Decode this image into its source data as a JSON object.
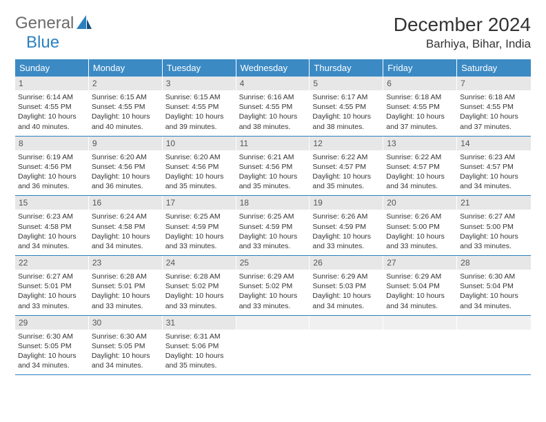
{
  "brand": {
    "text1": "General",
    "text2": "Blue"
  },
  "title": "December 2024",
  "location": "Barhiya, Bihar, India",
  "colors": {
    "header_bg": "#3b8ac4",
    "header_text": "#ffffff",
    "daynum_bg": "#e7e7e7",
    "border": "#2a7fbf",
    "body_text": "#333333",
    "logo_gray": "#6a6a6a",
    "logo_blue": "#2a7fbf"
  },
  "day_names": [
    "Sunday",
    "Monday",
    "Tuesday",
    "Wednesday",
    "Thursday",
    "Friday",
    "Saturday"
  ],
  "days": [
    {
      "n": 1,
      "sunrise": "6:14 AM",
      "sunset": "4:55 PM",
      "daylight": "10 hours and 40 minutes."
    },
    {
      "n": 2,
      "sunrise": "6:15 AM",
      "sunset": "4:55 PM",
      "daylight": "10 hours and 40 minutes."
    },
    {
      "n": 3,
      "sunrise": "6:15 AM",
      "sunset": "4:55 PM",
      "daylight": "10 hours and 39 minutes."
    },
    {
      "n": 4,
      "sunrise": "6:16 AM",
      "sunset": "4:55 PM",
      "daylight": "10 hours and 38 minutes."
    },
    {
      "n": 5,
      "sunrise": "6:17 AM",
      "sunset": "4:55 PM",
      "daylight": "10 hours and 38 minutes."
    },
    {
      "n": 6,
      "sunrise": "6:18 AM",
      "sunset": "4:55 PM",
      "daylight": "10 hours and 37 minutes."
    },
    {
      "n": 7,
      "sunrise": "6:18 AM",
      "sunset": "4:55 PM",
      "daylight": "10 hours and 37 minutes."
    },
    {
      "n": 8,
      "sunrise": "6:19 AM",
      "sunset": "4:56 PM",
      "daylight": "10 hours and 36 minutes."
    },
    {
      "n": 9,
      "sunrise": "6:20 AM",
      "sunset": "4:56 PM",
      "daylight": "10 hours and 36 minutes."
    },
    {
      "n": 10,
      "sunrise": "6:20 AM",
      "sunset": "4:56 PM",
      "daylight": "10 hours and 35 minutes."
    },
    {
      "n": 11,
      "sunrise": "6:21 AM",
      "sunset": "4:56 PM",
      "daylight": "10 hours and 35 minutes."
    },
    {
      "n": 12,
      "sunrise": "6:22 AM",
      "sunset": "4:57 PM",
      "daylight": "10 hours and 35 minutes."
    },
    {
      "n": 13,
      "sunrise": "6:22 AM",
      "sunset": "4:57 PM",
      "daylight": "10 hours and 34 minutes."
    },
    {
      "n": 14,
      "sunrise": "6:23 AM",
      "sunset": "4:57 PM",
      "daylight": "10 hours and 34 minutes."
    },
    {
      "n": 15,
      "sunrise": "6:23 AM",
      "sunset": "4:58 PM",
      "daylight": "10 hours and 34 minutes."
    },
    {
      "n": 16,
      "sunrise": "6:24 AM",
      "sunset": "4:58 PM",
      "daylight": "10 hours and 34 minutes."
    },
    {
      "n": 17,
      "sunrise": "6:25 AM",
      "sunset": "4:59 PM",
      "daylight": "10 hours and 33 minutes."
    },
    {
      "n": 18,
      "sunrise": "6:25 AM",
      "sunset": "4:59 PM",
      "daylight": "10 hours and 33 minutes."
    },
    {
      "n": 19,
      "sunrise": "6:26 AM",
      "sunset": "4:59 PM",
      "daylight": "10 hours and 33 minutes."
    },
    {
      "n": 20,
      "sunrise": "6:26 AM",
      "sunset": "5:00 PM",
      "daylight": "10 hours and 33 minutes."
    },
    {
      "n": 21,
      "sunrise": "6:27 AM",
      "sunset": "5:00 PM",
      "daylight": "10 hours and 33 minutes."
    },
    {
      "n": 22,
      "sunrise": "6:27 AM",
      "sunset": "5:01 PM",
      "daylight": "10 hours and 33 minutes."
    },
    {
      "n": 23,
      "sunrise": "6:28 AM",
      "sunset": "5:01 PM",
      "daylight": "10 hours and 33 minutes."
    },
    {
      "n": 24,
      "sunrise": "6:28 AM",
      "sunset": "5:02 PM",
      "daylight": "10 hours and 33 minutes."
    },
    {
      "n": 25,
      "sunrise": "6:29 AM",
      "sunset": "5:02 PM",
      "daylight": "10 hours and 33 minutes."
    },
    {
      "n": 26,
      "sunrise": "6:29 AM",
      "sunset": "5:03 PM",
      "daylight": "10 hours and 34 minutes."
    },
    {
      "n": 27,
      "sunrise": "6:29 AM",
      "sunset": "5:04 PM",
      "daylight": "10 hours and 34 minutes."
    },
    {
      "n": 28,
      "sunrise": "6:30 AM",
      "sunset": "5:04 PM",
      "daylight": "10 hours and 34 minutes."
    },
    {
      "n": 29,
      "sunrise": "6:30 AM",
      "sunset": "5:05 PM",
      "daylight": "10 hours and 34 minutes."
    },
    {
      "n": 30,
      "sunrise": "6:30 AM",
      "sunset": "5:05 PM",
      "daylight": "10 hours and 34 minutes."
    },
    {
      "n": 31,
      "sunrise": "6:31 AM",
      "sunset": "5:06 PM",
      "daylight": "10 hours and 35 minutes."
    }
  ],
  "labels": {
    "sunrise_prefix": "Sunrise: ",
    "sunset_prefix": "Sunset: ",
    "daylight_prefix": "Daylight: "
  },
  "layout": {
    "columns": 7,
    "weeks": 5,
    "trailing_empty": 4,
    "font_size_title": 28,
    "font_size_location": 17,
    "font_size_dayname": 13,
    "font_size_daynum": 12,
    "font_size_info": 10.5
  }
}
